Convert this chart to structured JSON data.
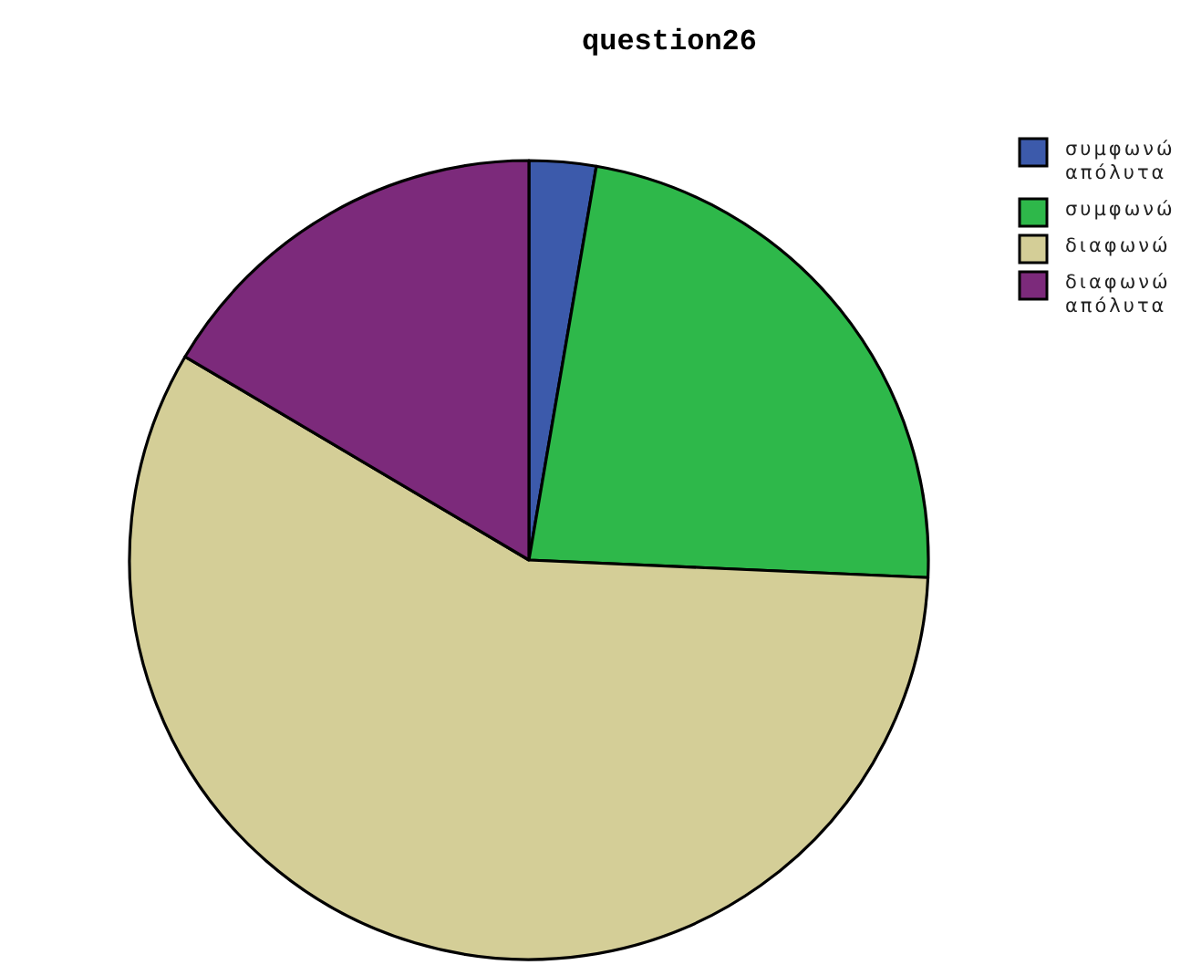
{
  "chart_data": {
    "type": "pie",
    "title": "question26",
    "categories": [
      "συμφωνώ απόλυτα",
      "συμφωνώ",
      "διαφωνώ",
      "διαφωνώ απόλυτα"
    ],
    "values": [
      2.7,
      23.0,
      57.8,
      16.5
    ],
    "colors": [
      "#3c5aab",
      "#2eb84a",
      "#d4ce97",
      "#7c2a7b"
    ],
    "legend": "top right"
  }
}
